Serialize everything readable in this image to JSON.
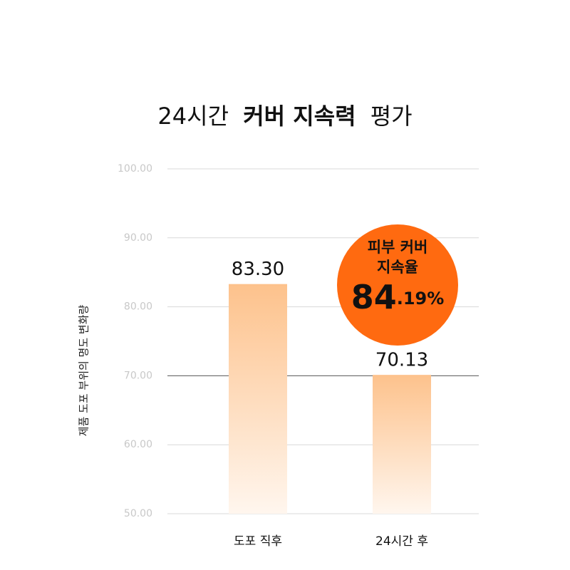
{
  "chart_data": {
    "type": "bar",
    "title_parts": [
      "24시간",
      "커버 지속력",
      "평가"
    ],
    "y_label": "제품 도포 부위의 명도 변화량",
    "categories": [
      "도포 직후",
      "24시간 후"
    ],
    "values": [
      83.3,
      70.13
    ],
    "value_labels": [
      "83.30",
      "70.13"
    ],
    "color": "#fdc28c",
    "ylim": [
      50,
      100
    ],
    "yticks": [
      {
        "value": 50,
        "label": "50.00"
      },
      {
        "value": 60,
        "label": "60.00"
      },
      {
        "value": 70,
        "label": "70.00"
      },
      {
        "value": 80,
        "label": "80.00"
      },
      {
        "value": 90,
        "label": "90.00"
      },
      {
        "value": 100,
        "label": "100.00"
      }
    ],
    "grid": true,
    "reference_line": 70,
    "annotation": {
      "lines": [
        "피부 커버",
        "지속율"
      ],
      "value": 84.19,
      "label": "84.19%",
      "color": "#ff6a10"
    }
  }
}
